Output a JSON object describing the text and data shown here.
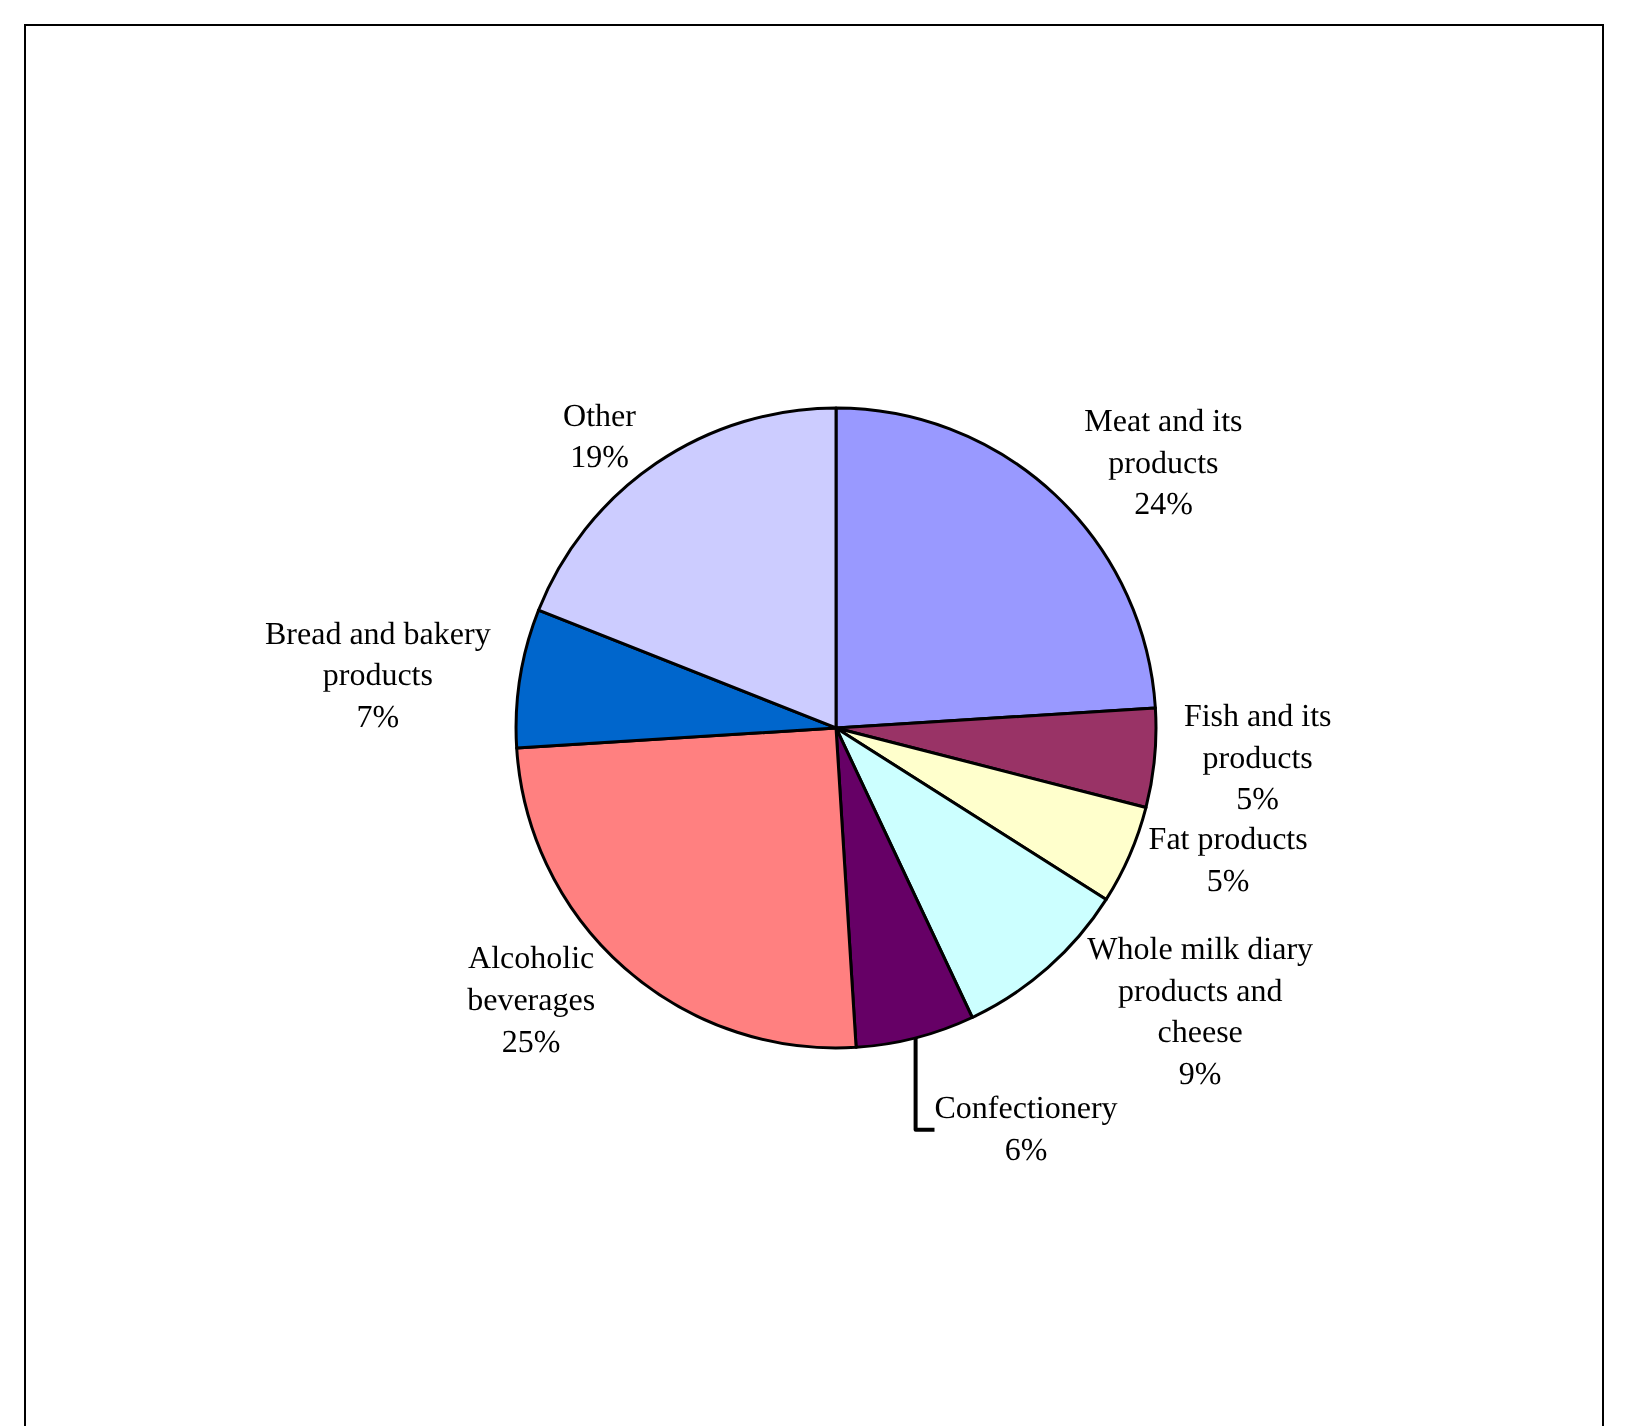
{
  "chart_data": {
    "type": "pie",
    "categories": [
      "Meat and its products",
      "Fish and its products",
      "Fat products",
      "Whole milk diary products and cheese",
      "Confectionery",
      "Alcoholic beverages",
      "Bread and bakery products",
      "Other"
    ],
    "values": [
      24,
      5,
      5,
      9,
      6,
      25,
      7,
      19
    ],
    "value_labels": [
      "24%",
      "5%",
      "5%",
      "9%",
      "6%",
      "25%",
      "7%",
      "19%"
    ],
    "colors": [
      "#9999ff",
      "#993366",
      "#ffffcc",
      "#ccffff",
      "#660066",
      "#ff8080",
      "#0066cc",
      "#ccccff"
    ],
    "legend": false
  }
}
